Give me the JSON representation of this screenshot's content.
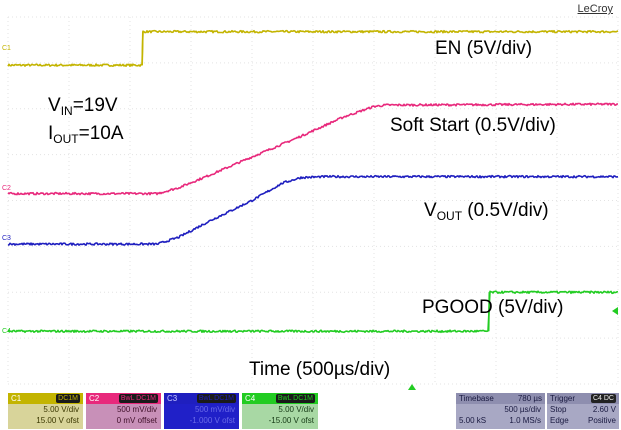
{
  "brand": "LeCroy",
  "annotations": {
    "vin_label": "V",
    "vin_sub": "IN",
    "vin_value": "=19V",
    "iout_label": "I",
    "iout_sub": "OUT",
    "iout_value": "=10A",
    "en": "EN (5V/div)",
    "soft_start": "Soft Start (0.5V/div)",
    "vout_label": "V",
    "vout_sub": "OUT",
    "vout_rest": " (0.5V/div)",
    "pgood": "PGOOD (5V/div)",
    "time": "Time (500µs/div)"
  },
  "channel_markers": [
    "C1",
    "C2",
    "C3",
    "C4"
  ],
  "channels": [
    {
      "name": "C1",
      "coupling": "DC1M",
      "scale": "5.00 V/div",
      "offset": "15.00 V ofst",
      "color": "#c3b400",
      "bg": "#d8d49a",
      "fg": "#3a3700"
    },
    {
      "name": "C2",
      "coupling": "BwL DC1M",
      "scale": "500 mV/div",
      "offset": "0 mV offset",
      "color": "#e8297c",
      "bg": "#c890b8",
      "fg": "#40102a"
    },
    {
      "name": "C3",
      "coupling": "BwL DC1M",
      "scale": "500 mV/div",
      "offset": "-1.000 V ofst",
      "color": "#1f1fbf",
      "bg": "#2020c8",
      "fg": "#6a6ae8"
    },
    {
      "name": "C4",
      "coupling": "BwL DC1M",
      "scale": "5.00 V/div",
      "offset": "-15.00 V ofst",
      "color": "#22cc22",
      "bg": "#a8d8a4",
      "fg": "#163a16"
    }
  ],
  "timebase": {
    "title": "Timebase",
    "delay": "780 µs",
    "per_div": "500 µs/div",
    "samples": "5.00 kS",
    "rate": "1.0 MS/s"
  },
  "trigger": {
    "title": "Trigger",
    "source": "C4 DC",
    "mode": "Stop",
    "level": "2.60 V",
    "type": "Edge",
    "slope": "Positive"
  },
  "chart_data": {
    "type": "line",
    "xlabel": "Time (500µs/div)",
    "x_unit": "divisions",
    "x_divisions": 10,
    "y_divisions": 8,
    "grid": true,
    "series": [
      {
        "name": "EN (5V/div)",
        "color": "#c3b400",
        "points": [
          [
            0.0,
            6.95
          ],
          [
            2.2,
            6.95
          ],
          [
            2.21,
            7.68
          ],
          [
            10.0,
            7.68
          ]
        ]
      },
      {
        "name": "Soft Start (0.5V/div)",
        "color": "#e8297c",
        "points": [
          [
            0.0,
            4.15
          ],
          [
            2.45,
            4.15
          ],
          [
            2.8,
            4.28
          ],
          [
            3.3,
            4.55
          ],
          [
            4.0,
            4.95
          ],
          [
            4.8,
            5.4
          ],
          [
            5.5,
            5.82
          ],
          [
            6.0,
            6.05
          ],
          [
            6.2,
            6.08
          ],
          [
            10.0,
            6.1
          ]
        ]
      },
      {
        "name": "VOUT (0.5V/div)",
        "color": "#1f1fbf",
        "points": [
          [
            0.0,
            3.05
          ],
          [
            2.45,
            3.05
          ],
          [
            2.8,
            3.2
          ],
          [
            3.3,
            3.55
          ],
          [
            4.0,
            4.0
          ],
          [
            4.5,
            4.38
          ],
          [
            4.8,
            4.5
          ],
          [
            5.2,
            4.52
          ],
          [
            10.0,
            4.52
          ]
        ]
      },
      {
        "name": "PGOOD (5V/div)",
        "color": "#22cc22",
        "points": [
          [
            0.0,
            1.15
          ],
          [
            7.88,
            1.15
          ],
          [
            7.89,
            2.0
          ],
          [
            10.0,
            2.0
          ]
        ]
      }
    ]
  }
}
